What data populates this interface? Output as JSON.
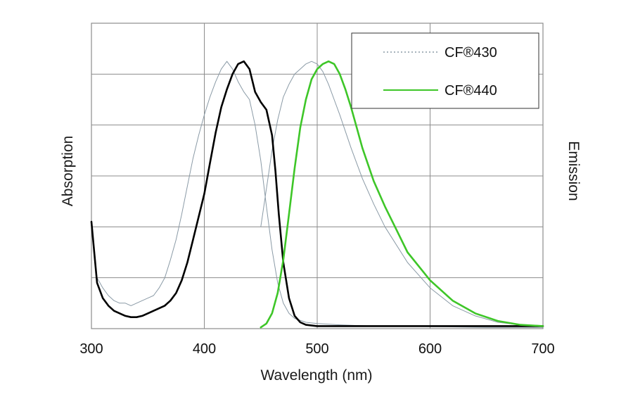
{
  "chart_data": {
    "type": "line",
    "xlabel": "Wavelength (nm)",
    "ylabel_left": "Absorption",
    "ylabel_right": "Emission",
    "xlim": [
      300,
      700
    ],
    "ylim": [
      0,
      1.2
    ],
    "x_ticks": [
      "300",
      "400",
      "500",
      "600",
      "700"
    ],
    "grid": true,
    "legend_position": "top-right",
    "legend": [
      {
        "label": "CF®430",
        "color": "#8a9aa6",
        "style": "dotted"
      },
      {
        "label": "CF®440",
        "color": "#3ec628",
        "style": "solid"
      }
    ],
    "colors": {
      "cf430": "#8a9aa6",
      "cf440_abs": "#000000",
      "cf440_em": "#3ec628",
      "grid": "#8c8c8c"
    },
    "series": [
      {
        "name": "CF®430",
        "kind": "absorption",
        "x": [
          300,
          305,
          310,
          315,
          320,
          325,
          330,
          335,
          340,
          345,
          350,
          355,
          360,
          365,
          370,
          375,
          380,
          385,
          390,
          395,
          400,
          405,
          410,
          415,
          420,
          425,
          430,
          435,
          440,
          445,
          450,
          455,
          460,
          465,
          470,
          475,
          480,
          490,
          500,
          520,
          550,
          600,
          650,
          700
        ],
        "y": [
          0.42,
          0.2,
          0.16,
          0.13,
          0.11,
          0.1,
          0.1,
          0.09,
          0.1,
          0.11,
          0.12,
          0.13,
          0.16,
          0.2,
          0.27,
          0.35,
          0.45,
          0.56,
          0.67,
          0.76,
          0.84,
          0.91,
          0.97,
          1.02,
          1.05,
          1.02,
          0.97,
          0.93,
          0.9,
          0.8,
          0.66,
          0.48,
          0.31,
          0.18,
          0.1,
          0.06,
          0.04,
          0.025,
          0.02,
          0.015,
          0.01,
          0.008,
          0.005,
          0.005
        ]
      },
      {
        "name": "CF®430",
        "kind": "emission",
        "x": [
          450,
          455,
          460,
          465,
          470,
          475,
          480,
          485,
          490,
          495,
          500,
          505,
          510,
          515,
          520,
          530,
          540,
          550,
          560,
          580,
          600,
          620,
          640,
          660,
          680,
          700
        ],
        "y": [
          0.4,
          0.55,
          0.7,
          0.82,
          0.91,
          0.96,
          1.0,
          1.02,
          1.04,
          1.05,
          1.04,
          1.01,
          0.96,
          0.9,
          0.84,
          0.71,
          0.59,
          0.49,
          0.4,
          0.26,
          0.16,
          0.09,
          0.05,
          0.025,
          0.015,
          0.01
        ]
      },
      {
        "name": "CF®440",
        "kind": "absorption",
        "x": [
          300,
          305,
          310,
          315,
          320,
          325,
          330,
          335,
          340,
          345,
          350,
          355,
          360,
          365,
          370,
          375,
          380,
          385,
          390,
          395,
          400,
          405,
          410,
          415,
          420,
          425,
          430,
          435,
          440,
          445,
          450,
          455,
          460,
          463,
          466,
          470,
          475,
          480,
          485,
          490,
          500,
          550,
          600,
          650,
          700
        ],
        "y": [
          0.42,
          0.18,
          0.12,
          0.09,
          0.07,
          0.06,
          0.05,
          0.045,
          0.045,
          0.05,
          0.06,
          0.07,
          0.08,
          0.09,
          0.11,
          0.14,
          0.19,
          0.26,
          0.35,
          0.44,
          0.53,
          0.65,
          0.77,
          0.87,
          0.94,
          1.0,
          1.04,
          1.05,
          1.02,
          0.93,
          0.89,
          0.86,
          0.76,
          0.62,
          0.45,
          0.26,
          0.12,
          0.05,
          0.025,
          0.015,
          0.01,
          0.01,
          0.01,
          0.01,
          0.01
        ]
      },
      {
        "name": "CF®440",
        "kind": "emission",
        "x": [
          450,
          455,
          460,
          465,
          470,
          475,
          480,
          485,
          490,
          495,
          500,
          505,
          510,
          515,
          520,
          525,
          530,
          535,
          540,
          550,
          560,
          570,
          580,
          600,
          620,
          640,
          660,
          680,
          700
        ],
        "y": [
          0.005,
          0.02,
          0.06,
          0.14,
          0.27,
          0.45,
          0.63,
          0.79,
          0.9,
          0.98,
          1.02,
          1.04,
          1.05,
          1.04,
          1.0,
          0.94,
          0.87,
          0.79,
          0.71,
          0.58,
          0.48,
          0.39,
          0.3,
          0.19,
          0.11,
          0.06,
          0.03,
          0.015,
          0.01
        ]
      }
    ]
  }
}
